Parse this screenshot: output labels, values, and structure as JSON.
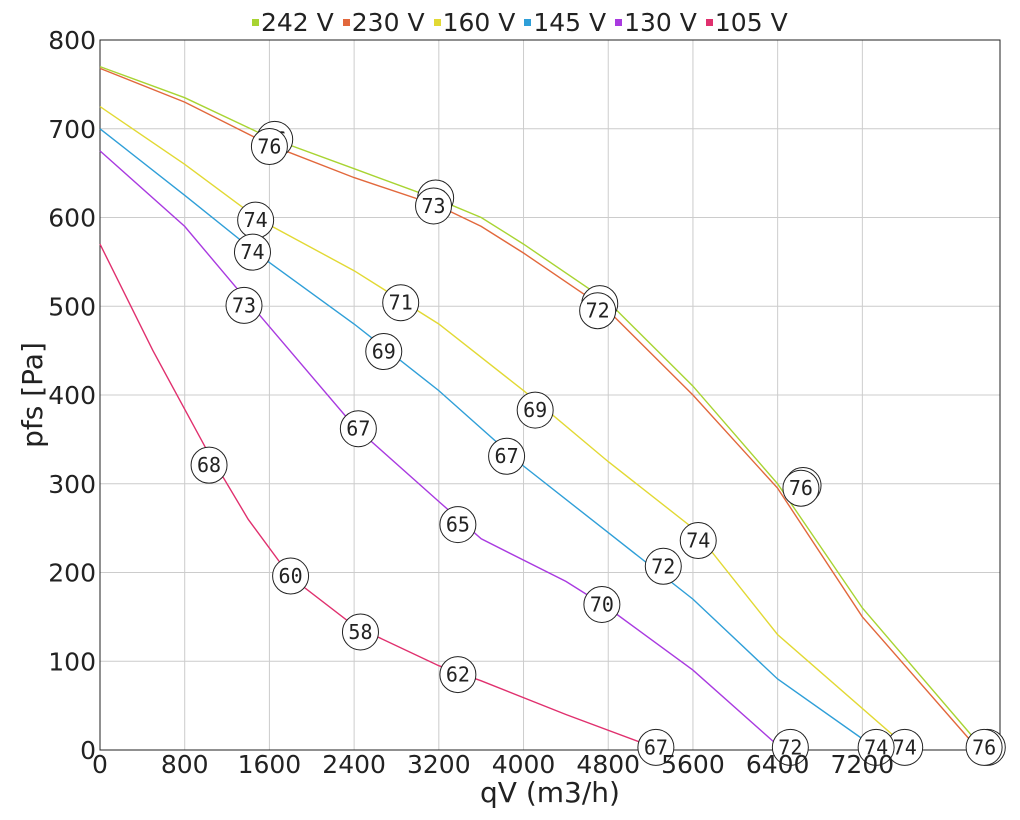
{
  "chart_data": {
    "type": "line",
    "title": "",
    "xlabel": "qV (m3/h)",
    "ylabel": "pfs [Pa]",
    "xlim": [
      0,
      8500
    ],
    "ylim": [
      0,
      800
    ],
    "xticks": [
      "0",
      "800",
      "1600",
      "2400",
      "3200",
      "4000",
      "4800",
      "5600",
      "6400",
      "7200"
    ],
    "yticks": [
      "0",
      "100",
      "200",
      "300",
      "400",
      "500",
      "600",
      "700",
      "800"
    ],
    "grid": true,
    "legend_position": "top",
    "series": [
      {
        "name": "242 V",
        "color": "#a8d432",
        "points": [
          [
            0,
            770
          ],
          [
            800,
            735
          ],
          [
            1600,
            690
          ],
          [
            2400,
            655
          ],
          [
            3200,
            620
          ],
          [
            3600,
            600
          ],
          [
            4000,
            570
          ],
          [
            4800,
            505
          ],
          [
            5600,
            410
          ],
          [
            6400,
            300
          ],
          [
            7200,
            160
          ],
          [
            8350,
            0
          ]
        ],
        "markers": [
          [
            1650,
            688,
            "76"
          ],
          [
            3170,
            622,
            "73"
          ],
          [
            4720,
            503,
            "72"
          ],
          [
            6640,
            298,
            "76"
          ],
          [
            8380,
            3,
            "76"
          ]
        ]
      },
      {
        "name": "230 V",
        "color": "#e2683c",
        "points": [
          [
            0,
            768
          ],
          [
            800,
            730
          ],
          [
            1600,
            682
          ],
          [
            2400,
            645
          ],
          [
            3200,
            613
          ],
          [
            3600,
            590
          ],
          [
            4000,
            560
          ],
          [
            4800,
            495
          ],
          [
            5600,
            400
          ],
          [
            6400,
            295
          ],
          [
            7200,
            150
          ],
          [
            8300,
            0
          ]
        ],
        "markers": [
          [
            1600,
            680,
            "76"
          ],
          [
            3150,
            613,
            "73"
          ],
          [
            4700,
            495,
            "72"
          ],
          [
            6620,
            295,
            "76"
          ],
          [
            8350,
            3,
            "76"
          ]
        ]
      },
      {
        "name": "160 V",
        "color": "#e2d934",
        "points": [
          [
            0,
            725
          ],
          [
            800,
            660
          ],
          [
            1500,
            598
          ],
          [
            2400,
            540
          ],
          [
            3200,
            480
          ],
          [
            4000,
            405
          ],
          [
            4800,
            325
          ],
          [
            5600,
            250
          ],
          [
            6400,
            130
          ],
          [
            7650,
            0
          ]
        ],
        "markers": [
          [
            1470,
            597,
            "74"
          ],
          [
            2840,
            504,
            "71"
          ],
          [
            4110,
            383,
            "69"
          ],
          [
            5650,
            236,
            "74"
          ],
          [
            7600,
            3,
            "74"
          ]
        ]
      },
      {
        "name": "145 V",
        "color": "#2f9fd8",
        "points": [
          [
            0,
            700
          ],
          [
            800,
            625
          ],
          [
            1500,
            558
          ],
          [
            2400,
            480
          ],
          [
            3200,
            405
          ],
          [
            4000,
            320
          ],
          [
            4800,
            245
          ],
          [
            5600,
            170
          ],
          [
            6400,
            80
          ],
          [
            7350,
            0
          ]
        ],
        "markers": [
          [
            1440,
            561,
            "74"
          ],
          [
            2680,
            449,
            "69"
          ],
          [
            3840,
            331,
            "67"
          ],
          [
            5320,
            207,
            "72"
          ],
          [
            7330,
            3,
            "74"
          ]
        ]
      },
      {
        "name": "130 V",
        "color": "#a93ae0",
        "points": [
          [
            0,
            675
          ],
          [
            800,
            590
          ],
          [
            1400,
            505
          ],
          [
            2400,
            365
          ],
          [
            3200,
            280
          ],
          [
            3600,
            238
          ],
          [
            4400,
            190
          ],
          [
            4800,
            160
          ],
          [
            5600,
            90
          ],
          [
            6450,
            0
          ]
        ],
        "markers": [
          [
            1360,
            501,
            "73"
          ],
          [
            2440,
            362,
            "67"
          ],
          [
            3380,
            254,
            "65"
          ],
          [
            4740,
            164,
            "70"
          ],
          [
            6520,
            3,
            "72"
          ]
        ]
      },
      {
        "name": "105 V",
        "color": "#e0306e",
        "points": [
          [
            0,
            570
          ],
          [
            500,
            450
          ],
          [
            1000,
            340
          ],
          [
            1400,
            260
          ],
          [
            1800,
            195
          ],
          [
            2400,
            140
          ],
          [
            3200,
            95
          ],
          [
            3600,
            78
          ],
          [
            4400,
            40
          ],
          [
            5300,
            0
          ]
        ],
        "markers": [
          [
            1030,
            321,
            "68"
          ],
          [
            1800,
            196,
            "60"
          ],
          [
            2460,
            133,
            "58"
          ],
          [
            3380,
            85,
            "62"
          ],
          [
            5250,
            3,
            "67"
          ]
        ]
      }
    ]
  }
}
